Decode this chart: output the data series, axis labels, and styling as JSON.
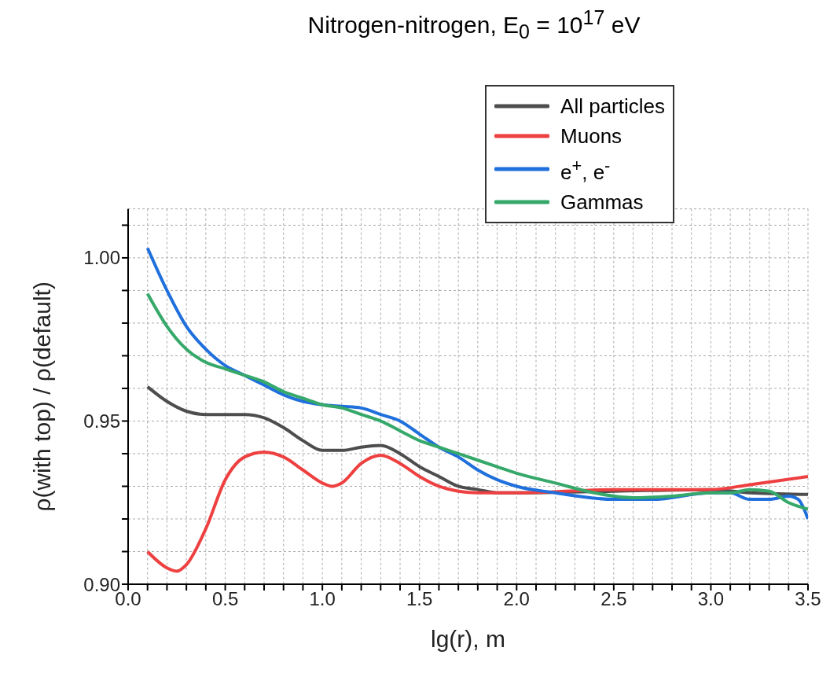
{
  "chart_data": {
    "type": "line",
    "title": "Nitrogen-nitrogen, E$_{0}$ = 10$^{17}$ eV",
    "xlabel": "lg(r), m",
    "ylabel": "ρ(with top) / ρ(default)",
    "xlim": [
      0,
      3.5
    ],
    "ylim": [
      0.9,
      1.015
    ],
    "xticks": [
      {
        "value": 0,
        "label": "0.0"
      },
      {
        "value": 0.1,
        "label": null
      },
      {
        "value": 0.2,
        "label": null
      },
      {
        "value": 0.3,
        "label": null
      },
      {
        "value": 0.4,
        "label": null
      },
      {
        "value": 0.5,
        "label": "0.5"
      },
      {
        "value": 0.6,
        "label": null
      },
      {
        "value": 0.7,
        "label": null
      },
      {
        "value": 0.8,
        "label": null
      },
      {
        "value": 0.9,
        "label": null
      },
      {
        "value": 1,
        "label": "1.0"
      },
      {
        "value": 1.1,
        "label": null
      },
      {
        "value": 1.2,
        "label": null
      },
      {
        "value": 1.3,
        "label": null
      },
      {
        "value": 1.4,
        "label": null
      },
      {
        "value": 1.5,
        "label": "1.5"
      },
      {
        "value": 1.6,
        "label": null
      },
      {
        "value": 1.7,
        "label": null
      },
      {
        "value": 1.8,
        "label": null
      },
      {
        "value": 1.9,
        "label": null
      },
      {
        "value": 2,
        "label": "2.0"
      },
      {
        "value": 2.1,
        "label": null
      },
      {
        "value": 2.2,
        "label": null
      },
      {
        "value": 2.3,
        "label": null
      },
      {
        "value": 2.4,
        "label": null
      },
      {
        "value": 2.5,
        "label": "2.5"
      },
      {
        "value": 2.6,
        "label": null
      },
      {
        "value": 2.7,
        "label": null
      },
      {
        "value": 2.8,
        "label": null
      },
      {
        "value": 2.9,
        "label": null
      },
      {
        "value": 3,
        "label": "3.0"
      },
      {
        "value": 3.1,
        "label": null
      },
      {
        "value": 3.2,
        "label": null
      },
      {
        "value": 3.3,
        "label": null
      },
      {
        "value": 3.4,
        "label": null
      },
      {
        "value": 3.5,
        "label": "3.5"
      }
    ],
    "yticks": [
      {
        "value": 0.9,
        "label": "0.90"
      },
      {
        "value": 0.91,
        "label": null
      },
      {
        "value": 0.92,
        "label": null
      },
      {
        "value": 0.93,
        "label": null
      },
      {
        "value": 0.94,
        "label": null
      },
      {
        "value": 0.95,
        "label": "0.95"
      },
      {
        "value": 0.96,
        "label": null
      },
      {
        "value": 0.97,
        "label": null
      },
      {
        "value": 0.98,
        "label": null
      },
      {
        "value": 0.99,
        "label": null
      },
      {
        "value": 1,
        "label": "1.00"
      },
      {
        "value": 1.01,
        "label": null
      }
    ],
    "grid": true,
    "legend": "top right",
    "marker": "none",
    "line_style": "solid",
    "series": [
      {
        "name": "All particles",
        "color": "#4d4d4d",
        "x": [
          0.1,
          0.2,
          0.3,
          0.4,
          0.5,
          0.6,
          0.7,
          0.8,
          0.9,
          1.0,
          1.1,
          1.2,
          1.3,
          1.4,
          1.5,
          1.6,
          1.7,
          1.8,
          1.9,
          2.0,
          2.5,
          3.0,
          3.2,
          3.5
        ],
        "values": [
          0.9605,
          0.956,
          0.953,
          0.952,
          0.952,
          0.952,
          0.951,
          0.948,
          0.944,
          0.941,
          0.941,
          0.942,
          0.9425,
          0.94,
          0.936,
          0.933,
          0.93,
          0.929,
          0.928,
          0.928,
          0.9285,
          0.929,
          0.928,
          0.9275
        ]
      },
      {
        "name": "Muons",
        "color": "#ee4040",
        "x": [
          0.1,
          0.2,
          0.25,
          0.3,
          0.4,
          0.5,
          0.6,
          0.7,
          0.8,
          0.9,
          1.0,
          1.05,
          1.1,
          1.2,
          1.3,
          1.4,
          1.5,
          1.6,
          1.7,
          1.8,
          2.0,
          2.5,
          3.0,
          3.2,
          3.5
        ],
        "values": [
          0.91,
          0.905,
          0.904,
          0.906,
          0.917,
          0.932,
          0.939,
          0.9405,
          0.939,
          0.935,
          0.931,
          0.93,
          0.931,
          0.937,
          0.9395,
          0.937,
          0.933,
          0.93,
          0.9285,
          0.928,
          0.928,
          0.929,
          0.929,
          0.9305,
          0.933
        ]
      },
      {
        "name": "e$^{+}$, e$^{-}$",
        "color": "#1f6fdc",
        "x": [
          0.1,
          0.2,
          0.3,
          0.4,
          0.5,
          0.6,
          0.7,
          0.8,
          0.9,
          1.0,
          1.1,
          1.2,
          1.3,
          1.4,
          1.5,
          1.6,
          1.7,
          1.8,
          1.9,
          2.0,
          2.2,
          2.5,
          2.7,
          3.0,
          3.1,
          3.2,
          3.3,
          3.4,
          3.45,
          3.5
        ],
        "values": [
          1.003,
          0.99,
          0.979,
          0.972,
          0.967,
          0.964,
          0.961,
          0.958,
          0.956,
          0.955,
          0.9545,
          0.954,
          0.952,
          0.95,
          0.946,
          0.942,
          0.939,
          0.935,
          0.932,
          0.93,
          0.928,
          0.926,
          0.926,
          0.928,
          0.928,
          0.926,
          0.926,
          0.927,
          0.926,
          0.92
        ]
      },
      {
        "name": "Gammas",
        "color": "#35a86a",
        "x": [
          0.1,
          0.2,
          0.3,
          0.4,
          0.5,
          0.6,
          0.7,
          0.8,
          0.9,
          1.0,
          1.1,
          1.2,
          1.3,
          1.4,
          1.5,
          1.6,
          1.7,
          1.8,
          1.9,
          2.0,
          2.2,
          2.4,
          2.6,
          2.8,
          3.0,
          3.1,
          3.2,
          3.3,
          3.4,
          3.5
        ],
        "values": [
          0.989,
          0.979,
          0.972,
          0.968,
          0.966,
          0.964,
          0.962,
          0.959,
          0.957,
          0.955,
          0.954,
          0.952,
          0.95,
          0.947,
          0.944,
          0.942,
          0.94,
          0.938,
          0.936,
          0.934,
          0.931,
          0.928,
          0.9265,
          0.927,
          0.928,
          0.928,
          0.929,
          0.9285,
          0.925,
          0.923
        ]
      }
    ]
  }
}
